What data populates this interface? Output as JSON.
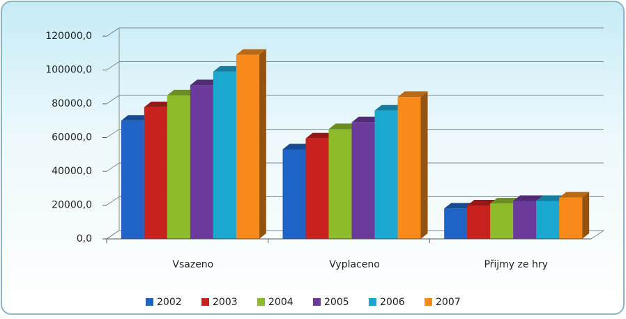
{
  "chart_data": {
    "type": "bar3d",
    "categories": [
      "Vsazeno",
      "Vyplaceno",
      "Přijmy ze hry"
    ],
    "series": [
      {
        "name": "2002",
        "color": "#1f64c4",
        "values": [
          70000,
          53000,
          18000
        ]
      },
      {
        "name": "2003",
        "color": "#c8211e",
        "values": [
          78000,
          59500,
          19800
        ]
      },
      {
        "name": "2004",
        "color": "#8dbb2c",
        "values": [
          85000,
          65000,
          21000
        ]
      },
      {
        "name": "2005",
        "color": "#6a3b9b",
        "values": [
          91000,
          69000,
          22500
        ]
      },
      {
        "name": "2006",
        "color": "#1aa8d0",
        "values": [
          99000,
          76000,
          22500
        ]
      },
      {
        "name": "2007",
        "color": "#f78a1a",
        "values": [
          109000,
          84000,
          24500
        ]
      }
    ],
    "ylim": [
      0,
      120000
    ],
    "yticks": [
      {
        "value": 0,
        "label": "0,0"
      },
      {
        "value": 20000,
        "label": "20000,0"
      },
      {
        "value": 40000,
        "label": "40000,0"
      },
      {
        "value": 60000,
        "label": "60000,0"
      },
      {
        "value": 80000,
        "label": "80000,0"
      },
      {
        "value": 100000,
        "label": "100000,0"
      },
      {
        "value": 120000,
        "label": "120000,0"
      }
    ],
    "grid": true,
    "legend": "bottom"
  }
}
